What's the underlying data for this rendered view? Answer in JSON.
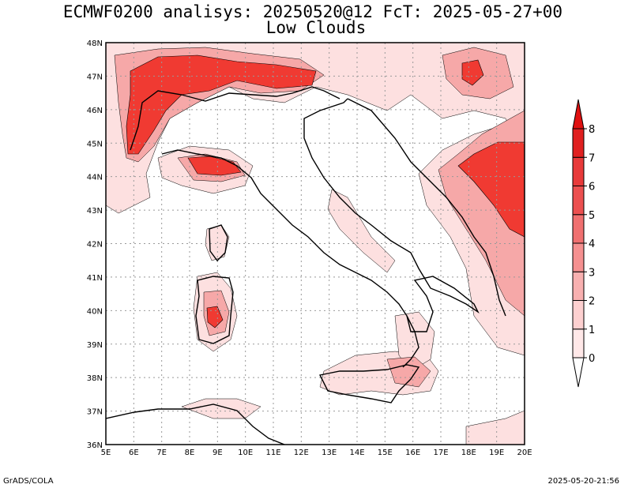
{
  "header": {
    "title": "ECMWF0200 analisys: 20250520@12 FcT: 2025-05-27+00",
    "subtitle": "Low Clouds"
  },
  "footer": {
    "left": "GrADS/COLA",
    "right": "2025-05-20-21:56"
  },
  "map": {
    "lon_labels": [
      "5E",
      "6E",
      "7E",
      "8E",
      "9E",
      "10E",
      "11E",
      "12E",
      "13E",
      "14E",
      "15E",
      "16E",
      "17E",
      "18E",
      "19E",
      "20E"
    ],
    "lat_labels": [
      "48N",
      "47N",
      "46N",
      "45N",
      "44N",
      "43N",
      "42N",
      "41N",
      "40N",
      "39N",
      "38N",
      "37N",
      "36N"
    ],
    "lon_range": [
      5,
      20
    ],
    "lat_range": [
      36,
      48
    ],
    "grid": "dotted",
    "field": "Low Clouds",
    "colors": {
      "cloud_low": "#fde0e0",
      "cloud_mid": "#f6a8a8",
      "cloud_high": "#f03a32",
      "contour": "#000000"
    }
  },
  "colorbar": {
    "levels": [
      "0",
      "1",
      "2",
      "3",
      "4",
      "5",
      "6",
      "7",
      "8"
    ],
    "colors": [
      "#ffe8e8",
      "#fdd0d0",
      "#f8b0b0",
      "#f59090",
      "#f07070",
      "#ec5050",
      "#e83a3a",
      "#e02020"
    ]
  }
}
